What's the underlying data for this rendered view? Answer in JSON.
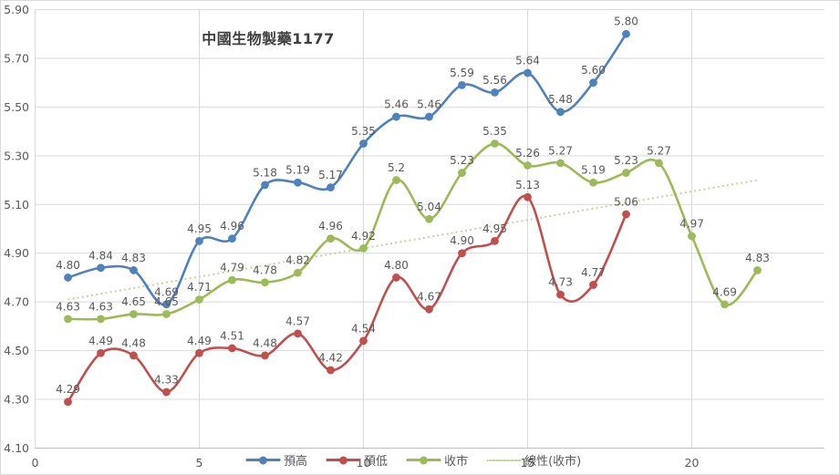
{
  "title": "中國生物製藥1177",
  "colors": {
    "grid": "#d9d9d9",
    "axis": "#bfbfbf",
    "tick_text": "#595959",
    "data_label_text": "#595959",
    "title_text": "#3f3f3f"
  },
  "chart_data": {
    "type": "line",
    "title": "中國生物製藥1177",
    "xlabel": "",
    "ylabel": "",
    "grid": true,
    "legend_position": "bottom",
    "ylim": [
      4.1,
      5.9
    ],
    "ytick_labels": [
      "5.90",
      "5.70",
      "5.50",
      "5.30",
      "5.10",
      "4.90",
      "4.70",
      "4.50",
      "4.30",
      "4.10"
    ],
    "xtick_values": [
      0,
      5,
      10,
      15,
      20
    ],
    "x_start": 1,
    "series": [
      {
        "name": "預高",
        "color": "#4f81bd",
        "marker": "circle",
        "values": [
          "4.80",
          "4.84",
          "4.83",
          "4.69",
          "4.95",
          "4.96",
          "5.18",
          "5.19",
          "5.17",
          "5.35",
          "5.46",
          "5.46",
          "5.59",
          "5.56",
          "5.64",
          "5.48",
          "5.60",
          "5.80"
        ]
      },
      {
        "name": "預低",
        "color": "#c0504d",
        "marker": "circle",
        "values": [
          "4.29",
          "4.49",
          "4.48",
          "4.33",
          "4.49",
          "4.51",
          "4.48",
          "4.57",
          "4.42",
          "4.54",
          "4.80",
          "4.67",
          "4.90",
          "4.95",
          "5.13",
          "4.73",
          "4.77",
          "5.06"
        ]
      },
      {
        "name": "收市",
        "color": "#9bbb59",
        "marker": "circle",
        "values": [
          "4.63",
          "4.63",
          "4.65",
          "4.65",
          "4.71",
          "4.79",
          "4.78",
          "4.82",
          "4.96",
          "4.92",
          "5.2",
          "5.04",
          "5.23",
          "5.35",
          "5.26",
          "5.27",
          "5.19",
          "5.23",
          "5.27",
          "4.97",
          "4.69",
          "4.83"
        ]
      }
    ],
    "trendline": {
      "name": "線性(收市)",
      "of_series": "收市",
      "color": "#c2d69a",
      "style": "dotted",
      "x1": 1,
      "y1": 4.71,
      "x2": 22,
      "y2": 5.2
    }
  }
}
